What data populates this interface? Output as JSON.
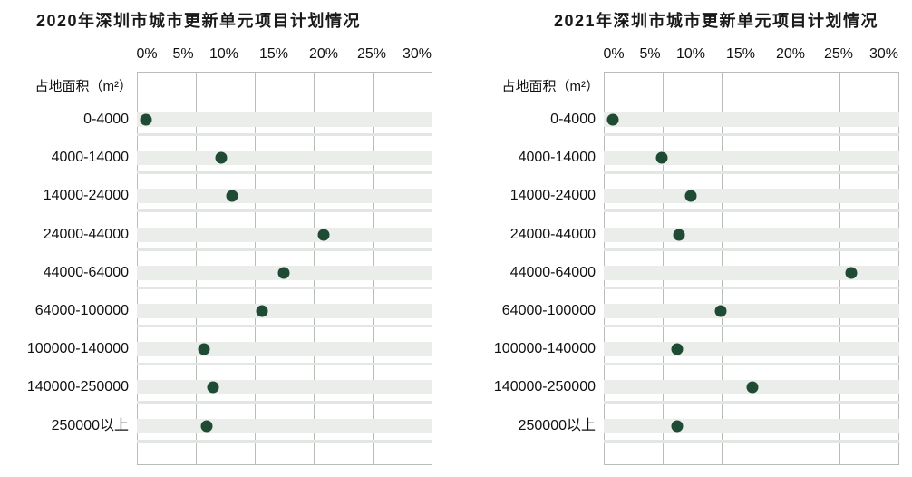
{
  "page": {
    "background": "#ffffff",
    "description": "Two side-by-side dot plots comparing Shenzhen urban renewal unit project plans by land area for 2020 and 2021"
  },
  "colors": {
    "dot": "#1f4a34",
    "row_band": "#eaedea",
    "row_stripe": "#e3e7e3",
    "gridline": "#b8bdb8",
    "title_text": "#1a1a1a",
    "axis_text": "#111111"
  },
  "chart_data": [
    {
      "type": "scatter",
      "title": "2020年深圳市城市更新单元项目计划情况",
      "ylabel": "占地面积（m²）",
      "xlabel": "",
      "x_ticks": [
        "0%",
        "5%",
        "10%",
        "15%",
        "20%",
        "25%",
        "30%"
      ],
      "xlim": [
        0,
        30
      ],
      "grid": true,
      "legend": "none",
      "unit": "percent",
      "categories": [
        "0-4000",
        "4000-14000",
        "14000-24000",
        "24000-44000",
        "44000-64000",
        "64000-100000",
        "100000-140000",
        "140000-250000",
        "250000以上"
      ],
      "values": [
        0.5,
        9.7,
        10.8,
        20.0,
        16.0,
        13.8,
        7.6,
        8.7,
        7.9
      ]
    },
    {
      "type": "scatter",
      "title": "2021年深圳市城市更新单元项目计划情况",
      "ylabel": "占地面积（m²）",
      "xlabel": "",
      "x_ticks": [
        "0%",
        "5%",
        "10%",
        "15%",
        "20%",
        "25%",
        "30%"
      ],
      "xlim": [
        0,
        30
      ],
      "grid": true,
      "legend": "none",
      "unit": "percent",
      "categories": [
        "0-4000",
        "4000-14000",
        "14000-24000",
        "24000-44000",
        "44000-64000",
        "64000-100000",
        "100000-140000",
        "140000-250000",
        "250000以上"
      ],
      "values": [
        0.5,
        6.4,
        10.0,
        8.5,
        26.4,
        13.0,
        8.3,
        16.2,
        8.3
      ]
    }
  ]
}
